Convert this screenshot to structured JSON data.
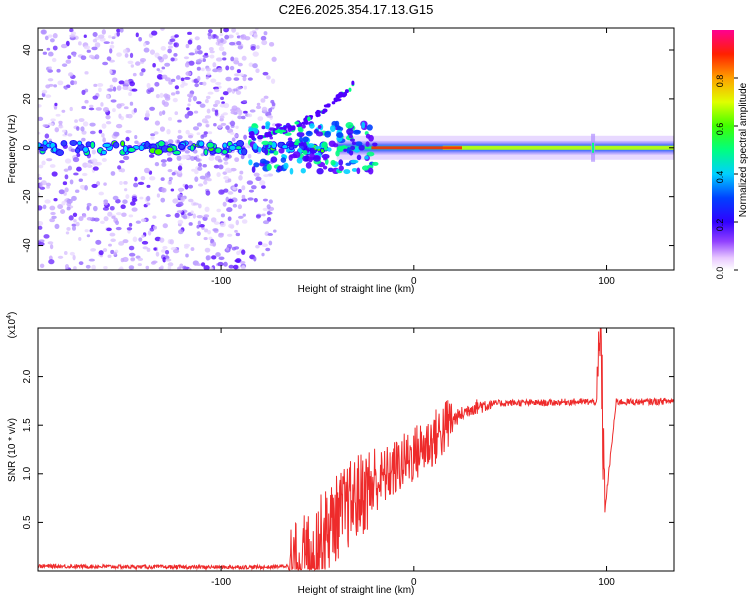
{
  "title": "C2E6.2025.354.17.13.G15",
  "chart_data": [
    {
      "type": "heatmap",
      "xlabel": "Height of straight line (km)",
      "ylabel": "Frequency (Hz)",
      "xlim": [
        -195,
        135
      ],
      "ylim": [
        -50,
        49
      ],
      "x_ticks": [
        -100,
        0,
        100
      ],
      "y_ticks": [
        -40,
        -20,
        0,
        20,
        40
      ],
      "colorbar": {
        "label": "Normalized spectral amplitude",
        "range": [
          0,
          1
        ],
        "ticks": [
          "0.0",
          "0.2",
          "0.4",
          "0.6",
          "0.8"
        ],
        "colors": [
          "#ffffff",
          "#c080ff",
          "#6000ff",
          "#0000ff",
          "#00c8ff",
          "#00ff60",
          "#c8ff00",
          "#ffff00",
          "#ff8000",
          "#ff0000",
          "#ff0080"
        ]
      },
      "features": {
        "carrier_freq_hz": 0,
        "scatter_region_x": [
          -195,
          -72
        ],
        "drift_branch": {
          "x": [
            -85,
            -30
          ],
          "y": [
            5,
            27
          ]
        },
        "spike_x": 93
      }
    },
    {
      "type": "line",
      "xlabel": "Height of straight line (km)",
      "ylabel": "SNR (10 * v/v)",
      "y_multiplier": "(x10",
      "y_multiplier_exp": "4",
      "xlim": [
        -195,
        135
      ],
      "ylim": [
        0,
        2.5
      ],
      "x_ticks": [
        -100,
        0,
        100
      ],
      "y_ticks": [
        "0.5",
        "1.0",
        "1.5",
        "2.0"
      ],
      "series": [
        {
          "color": "#ee2b2b",
          "x": [
            -195,
            -120,
            -75,
            -60,
            -50,
            -40,
            -30,
            -20,
            -10,
            0,
            10,
            20,
            30,
            40,
            50,
            60,
            70,
            80,
            90,
            95,
            97,
            99,
            105,
            120,
            135
          ],
          "y": [
            0.05,
            0.04,
            0.04,
            0.06,
            0.3,
            0.55,
            0.75,
            0.9,
            1.05,
            1.2,
            1.35,
            1.55,
            1.68,
            1.72,
            1.73,
            1.73,
            1.73,
            1.74,
            1.74,
            1.74,
            2.45,
            0.6,
            1.74,
            1.74,
            1.75
          ]
        }
      ]
    }
  ]
}
